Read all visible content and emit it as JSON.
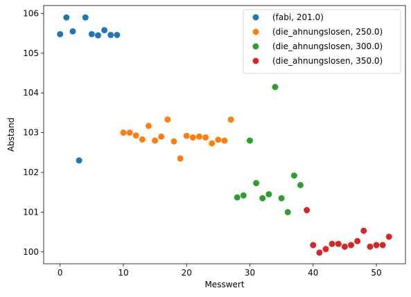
{
  "chart_data": {
    "type": "scatter",
    "xlabel": "Messwert",
    "ylabel": "Abstand",
    "xlim": [
      -2.6,
      54.6
    ],
    "ylim": [
      99.7,
      106.2
    ],
    "xticks": [
      0,
      10,
      20,
      30,
      40,
      50
    ],
    "yticks": [
      100,
      101,
      102,
      103,
      104,
      105,
      106
    ],
    "grid": false,
    "legend_position": "top-right",
    "series": [
      {
        "name": "(fabi, 201.0)",
        "color": "#1f77b4",
        "x": [
          0,
          1,
          2,
          3,
          4,
          5,
          6,
          7,
          8,
          9
        ],
        "y": [
          105.48,
          105.9,
          105.55,
          102.3,
          105.9,
          105.48,
          105.45,
          105.58,
          105.46,
          105.46
        ]
      },
      {
        "name": "(die_ahnungslosen, 250.0)",
        "color": "#ff7f0e",
        "x": [
          10,
          11,
          12,
          13,
          14,
          15,
          16,
          17,
          18,
          19,
          20,
          21,
          22,
          23,
          24,
          25,
          26,
          27
        ],
        "y": [
          103.0,
          103.0,
          102.93,
          102.83,
          103.17,
          102.8,
          102.9,
          103.33,
          102.78,
          102.35,
          102.92,
          102.88,
          102.9,
          102.88,
          102.73,
          102.82,
          102.8,
          103.33
        ]
      },
      {
        "name": "(die_ahnungslosen, 300.0)",
        "color": "#2ca02c",
        "x": [
          28,
          29,
          30,
          31,
          32,
          33,
          34,
          35,
          36,
          37,
          38
        ],
        "y": [
          101.37,
          101.42,
          102.8,
          101.73,
          101.35,
          101.45,
          104.15,
          101.35,
          101.0,
          101.92,
          101.68
        ]
      },
      {
        "name": "(die_ahnungslosen, 350.0)",
        "color": "#d62728",
        "x": [
          39,
          40,
          41,
          42,
          43,
          44,
          45,
          46,
          47,
          48,
          49,
          50,
          51,
          52
        ],
        "y": [
          101.05,
          100.17,
          99.98,
          100.07,
          100.2,
          100.2,
          100.13,
          100.17,
          100.27,
          100.53,
          100.13,
          100.17,
          100.17,
          100.38
        ]
      }
    ]
  }
}
